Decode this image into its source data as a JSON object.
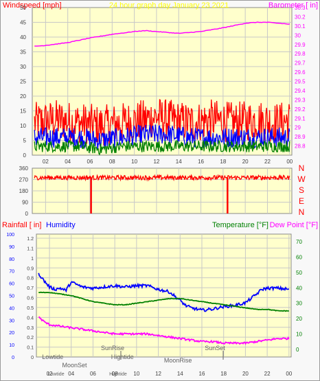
{
  "colors": {
    "plot_bg": "#ffffcc",
    "grid": "#c8c8c8",
    "axis_text": "#404040",
    "wind_label": "#ff0000",
    "title": "#ffff00",
    "barometer": "#ff00ff",
    "wind_red": "#ff0000",
    "wind_blue": "#0000ff",
    "wind_green": "#008000",
    "direction": "#ff0000",
    "humidity": "#0000ff",
    "temperature": "#008000",
    "dewpoint": "#ff00ff",
    "rain_label": "#ff0000",
    "tide_text": "#606060"
  },
  "chart_data": [
    {
      "type": "line",
      "title": "24 hour graph day   January 23 2021",
      "ylabel_left": "Windspeed [mph]",
      "ylabel_right": "Barometer [ in]",
      "x_ticks": [
        "02",
        "04",
        "06",
        "08",
        "10",
        "12",
        "14",
        "16",
        "18",
        "20",
        "22",
        "00"
      ],
      "ylim_left": [
        0,
        50
      ],
      "y_ticks_left": [
        "0",
        "5",
        "10",
        "15",
        "20",
        "25",
        "30",
        "35",
        "40",
        "45",
        "50"
      ],
      "ylim_right": [
        28.7,
        30.3
      ],
      "y_ticks_right": [
        "28.8",
        "28.9",
        "29",
        "29.1",
        "29.2",
        "29.3",
        "29.4",
        "29.5",
        "29.6",
        "29.7",
        "29.8",
        "29.9",
        "30",
        "30.1",
        "30.2",
        "30.3"
      ],
      "grid": true,
      "series": [
        {
          "axis": "right",
          "x": [
            1,
            2,
            4,
            6,
            8,
            10,
            11,
            12,
            14,
            16,
            18,
            20,
            21,
            22,
            23,
            24
          ],
          "values": [
            29.88,
            29.89,
            29.92,
            29.97,
            30.01,
            30.04,
            30.05,
            30.04,
            30.02,
            30.04,
            30.08,
            30.13,
            30.14,
            30.14,
            30.13,
            30.12
          ]
        },
        {
          "axis": "left",
          "x": [
            1,
            3,
            5,
            7,
            9,
            11,
            12,
            13,
            15,
            17,
            19,
            21,
            23,
            24
          ],
          "values": [
            11,
            12,
            11,
            10,
            11,
            12,
            13,
            12,
            11,
            12,
            11,
            12,
            11,
            12
          ],
          "noise": 7
        },
        {
          "axis": "left",
          "x": [
            1,
            3,
            5,
            7,
            9,
            11,
            13,
            15,
            17,
            19,
            21,
            23,
            24
          ],
          "values": [
            6,
            6,
            6,
            5,
            6,
            7,
            7,
            6,
            6,
            6,
            6,
            6,
            6
          ],
          "noise": 3.5
        },
        {
          "axis": "left",
          "x": [
            1,
            3,
            5,
            7,
            9,
            11,
            13,
            15,
            17,
            19,
            21,
            23,
            24
          ],
          "values": [
            3,
            3,
            3,
            2,
            3,
            3,
            3,
            3,
            3,
            3,
            3,
            3,
            3
          ],
          "noise": 2
        }
      ]
    },
    {
      "type": "line",
      "ylabel_right": "N W S E N",
      "y_ticks": [
        "0",
        "90",
        "180",
        "270",
        "360"
      ],
      "ylim": [
        0,
        360
      ],
      "x_ticks": [
        "02",
        "04",
        "06",
        "08",
        "10",
        "12",
        "14",
        "16",
        "18",
        "20",
        "22",
        "00"
      ],
      "series": [
        {
          "x": [
            1,
            24
          ],
          "values": [
            285,
            285
          ],
          "noise": 18
        }
      ],
      "spikes": [
        {
          "x": 6.1,
          "value": 0
        },
        {
          "x": 18.4,
          "value": 0
        }
      ]
    },
    {
      "type": "line",
      "ylabel_left_1": "Rainfall [ in]",
      "ylabel_left_2": "Humidity",
      "ylabel_right_1": "Temperature [°F]",
      "ylabel_right_2": "Dew Point [°F]",
      "x_ticks": [
        "02",
        "04",
        "06",
        "08",
        "10",
        "12",
        "14",
        "16",
        "18",
        "20",
        "22",
        "00"
      ],
      "y_ticks_humidity": [
        "0",
        "10",
        "20",
        "30",
        "40",
        "50",
        "60",
        "70",
        "80",
        "90",
        "100"
      ],
      "y_ticks_rain": [
        "0",
        "0.1",
        "0.2",
        "0.3",
        "0.4",
        "0.5",
        "0.6",
        "0.7",
        "0.8",
        "0.9",
        "1",
        "1.1",
        "1.2"
      ],
      "y_ticks_temp": [
        "0",
        "10",
        "20",
        "30",
        "40",
        "50",
        "60",
        "70"
      ],
      "ylim_humidity": [
        0,
        100
      ],
      "ylim_temp": [
        -5,
        75
      ],
      "series": [
        {
          "name": "Humidity",
          "axis": "humidity",
          "x": [
            1,
            1.5,
            2,
            2.5,
            3,
            3.5,
            4,
            5,
            6,
            7,
            8,
            9,
            10,
            11,
            12,
            13,
            14,
            14.5,
            15,
            16,
            17,
            18,
            19,
            20,
            21,
            21.5,
            22,
            23,
            24
          ],
          "values": [
            68,
            62,
            57,
            55,
            56,
            54,
            61,
            57,
            56,
            57,
            58,
            57,
            58,
            58,
            55,
            53,
            46,
            42,
            40,
            38,
            39,
            41,
            42,
            44,
            51,
            55,
            56,
            56,
            55
          ]
        },
        {
          "name": "Temperature",
          "axis": "temp",
          "x": [
            1,
            2,
            3,
            4,
            5,
            6,
            7,
            8,
            9,
            10,
            11,
            12,
            13,
            14,
            15,
            16,
            17,
            18,
            19,
            20,
            21,
            22,
            23,
            24
          ],
          "values": [
            37,
            37,
            36,
            35,
            33,
            31,
            30,
            29,
            29,
            30,
            31,
            32,
            33,
            33,
            32,
            31,
            30,
            29,
            28,
            27,
            26,
            26,
            25,
            25
          ]
        },
        {
          "name": "Dew Point",
          "axis": "temp",
          "x": [
            1,
            1.5,
            2,
            3,
            4,
            5,
            6,
            7,
            8,
            9,
            10,
            11,
            12,
            13,
            14,
            15,
            16,
            17,
            18,
            19,
            20,
            21,
            22,
            23,
            24
          ],
          "values": [
            21,
            18,
            16,
            15,
            14,
            13,
            12,
            11,
            10,
            10,
            10,
            10,
            9,
            8,
            7,
            6,
            5,
            5,
            4,
            4,
            4,
            5,
            6,
            7,
            7
          ]
        }
      ],
      "annotations": [
        {
          "label": "Lowtide",
          "x": 2.3,
          "row": "upper"
        },
        {
          "label": "MoonSet",
          "x": 4.3,
          "row": "middle"
        },
        {
          "label": "SunRise",
          "x": 7.8,
          "row": "top"
        },
        {
          "label": "Hightide",
          "x": 8.7,
          "row": "upper"
        },
        {
          "label": "MoonRise",
          "x": 13.8,
          "row": "low"
        },
        {
          "label": "SunSet",
          "x": 17.2,
          "row": "top"
        },
        {
          "label": "Lowtide",
          "x": 2.6,
          "row": "bottom"
        },
        {
          "label": "Hightide",
          "x": 8.3,
          "row": "bottom"
        }
      ]
    }
  ]
}
